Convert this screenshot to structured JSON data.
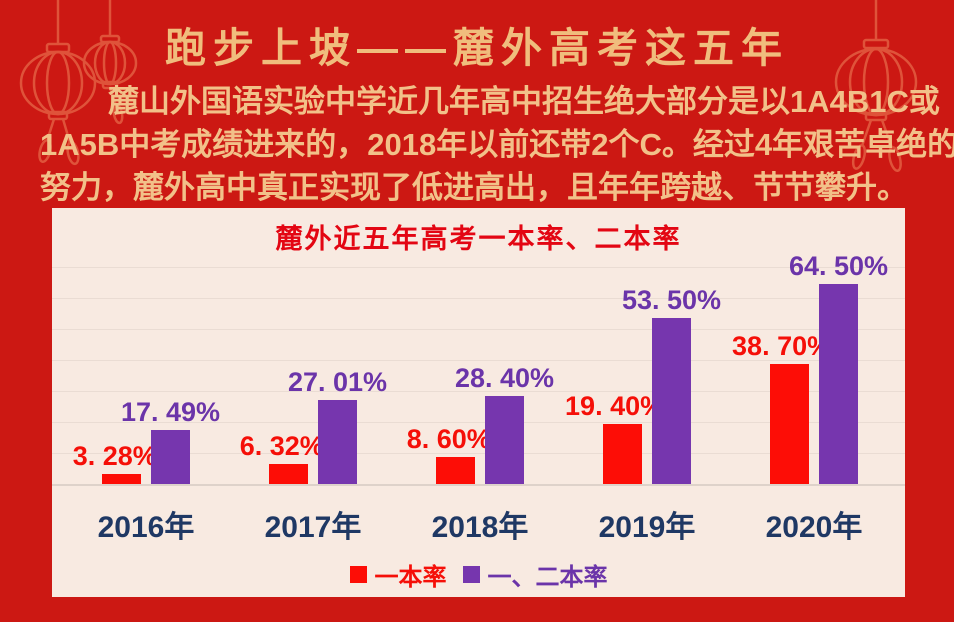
{
  "poster": {
    "title": "跑步上坡——麓外高考这五年",
    "intro_lines": [
      "麓山外国语实验中学近几年高中招生绝大部分是以1A4B1C或",
      "1A5B中考成绩进来的，2018年以前还带2个C。经过4年艰苦卓绝的",
      "努力，麓外高中真正实现了低进高出，且年年跨越、节节攀升。"
    ]
  },
  "chart_data": {
    "type": "bar",
    "title": "麓外近五年高考一本率、二本率",
    "categories": [
      "2016年",
      "2017年",
      "2018年",
      "2019年",
      "2020年"
    ],
    "series": [
      {
        "name": "一本率",
        "color": "#fd0d06",
        "label_color": "#f50f08",
        "values": [
          3.28,
          6.32,
          8.6,
          19.4,
          38.7
        ],
        "labels": [
          "3. 28%",
          "6. 32%",
          "8. 60%",
          "19. 40%",
          "38. 70%"
        ]
      },
      {
        "name": "一、二本率",
        "color": "#7636ae",
        "label_color": "#6b34a9",
        "values": [
          17.49,
          27.01,
          28.4,
          53.5,
          64.5
        ],
        "labels": [
          "17. 49%",
          "27. 01%",
          "28. 40%",
          "53. 50%",
          "64. 50%"
        ]
      }
    ],
    "ylim": [
      0,
      70
    ],
    "grid": "horizontal gridlines every 10%, no tick labels",
    "legend_position": "bottom-center",
    "xlabel": "",
    "ylabel": ""
  },
  "colors": {
    "background_red": "#cc1813",
    "title_gold": "#f0bd7d",
    "body_gold": "#f2c189",
    "panel_background": "#f8eae1",
    "chart_title_red": "#e30613",
    "axis_label_navy": "#1f3864",
    "lantern_outline": "#e1573d"
  }
}
